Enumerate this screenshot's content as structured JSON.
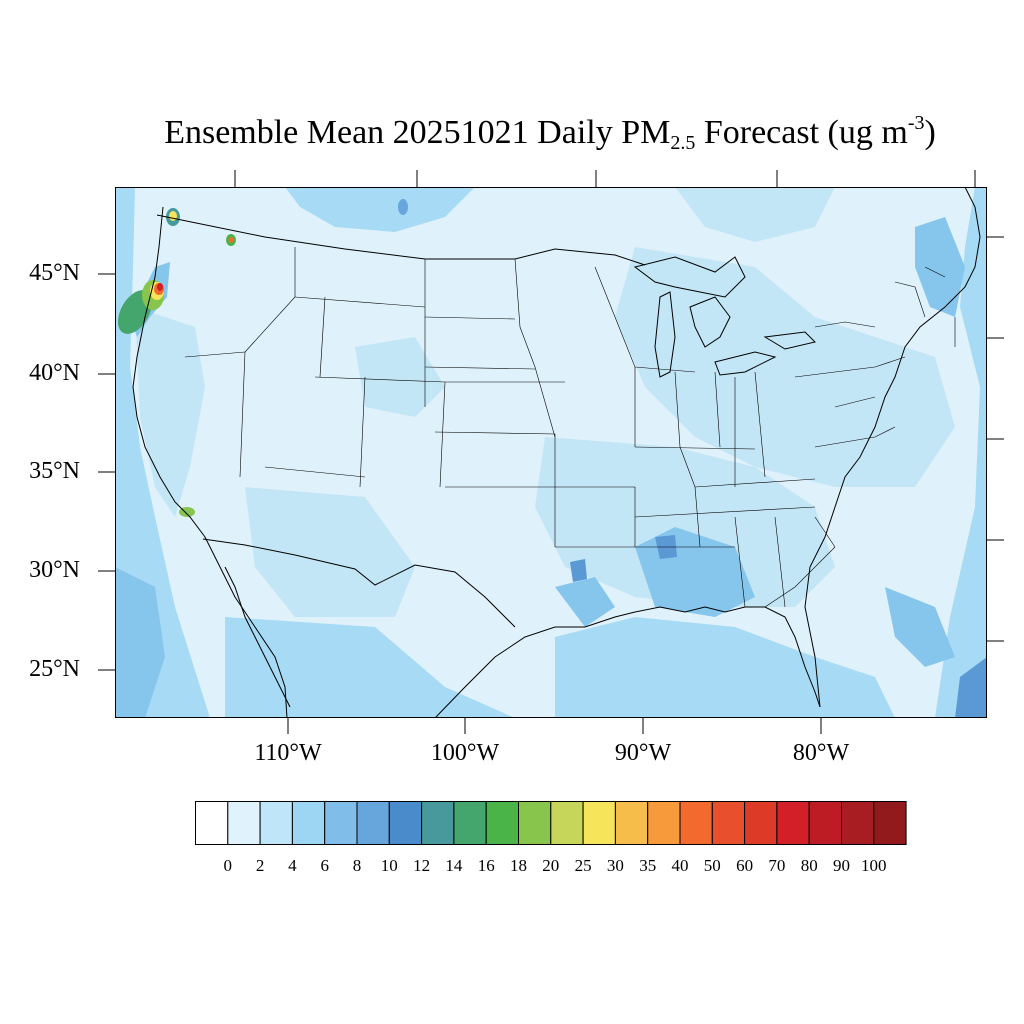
{
  "title": {
    "prefix": "Ensemble Mean 20251021 Daily PM",
    "subscript": "2.5",
    "middle": " Forecast (ug m",
    "superscript": "-3",
    "suffix": ")"
  },
  "latitude_labels": [
    "45°N",
    "40°N",
    "35°N",
    "30°N",
    "25°N"
  ],
  "longitude_labels": [
    "110°W",
    "100°W",
    "90°W",
    "80°W"
  ],
  "colorbar": {
    "labels": [
      "0",
      "2",
      "4",
      "6",
      "8",
      "10",
      "12",
      "14",
      "16",
      "18",
      "20",
      "25",
      "30",
      "35",
      "40",
      "50",
      "60",
      "70",
      "80",
      "90",
      "100"
    ],
    "colors": [
      "#ffffff",
      "#e0f2fb",
      "#bfe6f8",
      "#9dd6f3",
      "#80bde8",
      "#66a6dc",
      "#4a8bcb",
      "#47999b",
      "#45a66d",
      "#4bb449",
      "#88c54d",
      "#c6d65a",
      "#f6e45b",
      "#f7bd4a",
      "#f69a3b",
      "#f26a2d",
      "#e74f2d",
      "#dd3a28",
      "#d32028",
      "#bd1c24",
      "#a81d22",
      "#921a1c"
    ]
  },
  "map_fill": {
    "background": "#dff1fa",
    "low": "#c3e6f7",
    "moderate": "#a7daf4",
    "higher": "#86c5ec",
    "hotspot": "#5a99d4"
  }
}
